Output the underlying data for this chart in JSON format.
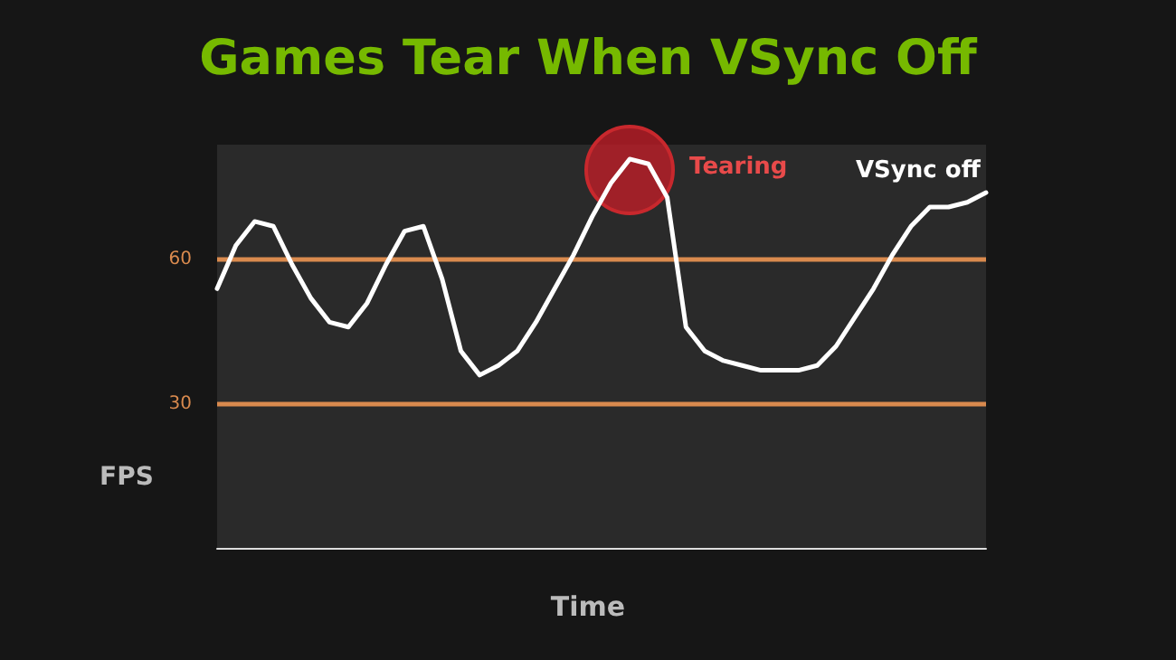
{
  "chart_data": {
    "type": "line",
    "title": "Games Tear When VSync Off",
    "xlabel": "Time",
    "ylabel": "FPS",
    "categories": [
      null,
      null,
      null,
      null,
      null,
      null,
      null,
      null,
      null,
      null,
      null,
      null,
      null,
      null,
      null,
      null,
      null,
      null,
      null,
      null,
      null,
      null,
      null,
      null,
      null,
      null,
      null,
      null,
      null,
      null,
      null,
      null,
      null,
      null,
      null,
      null,
      null,
      null,
      null,
      null,
      null,
      null
    ],
    "series": [
      {
        "name": "VSync off",
        "color": "#ffffff",
        "values": [
          54,
          63,
          68,
          67,
          59,
          52,
          47,
          46,
          51,
          59,
          66,
          67,
          56,
          41,
          36,
          38,
          41,
          47,
          54,
          61,
          69,
          76,
          81,
          80,
          73,
          46,
          41,
          39,
          38,
          37,
          37,
          37,
          38,
          42,
          48,
          54,
          61,
          67,
          71,
          71,
          72,
          74
        ]
      }
    ],
    "ylim": [
      0,
      84
    ],
    "yticks": [
      30,
      60
    ],
    "grid": false,
    "marker": "none",
    "line_style": "solid",
    "ref_lines": [
      {
        "axis": "y",
        "value": 60,
        "color": "#d98a4e"
      },
      {
        "axis": "y",
        "value": 30,
        "color": "#d98a4e"
      }
    ],
    "annotations": [
      "Tearing"
    ]
  }
}
